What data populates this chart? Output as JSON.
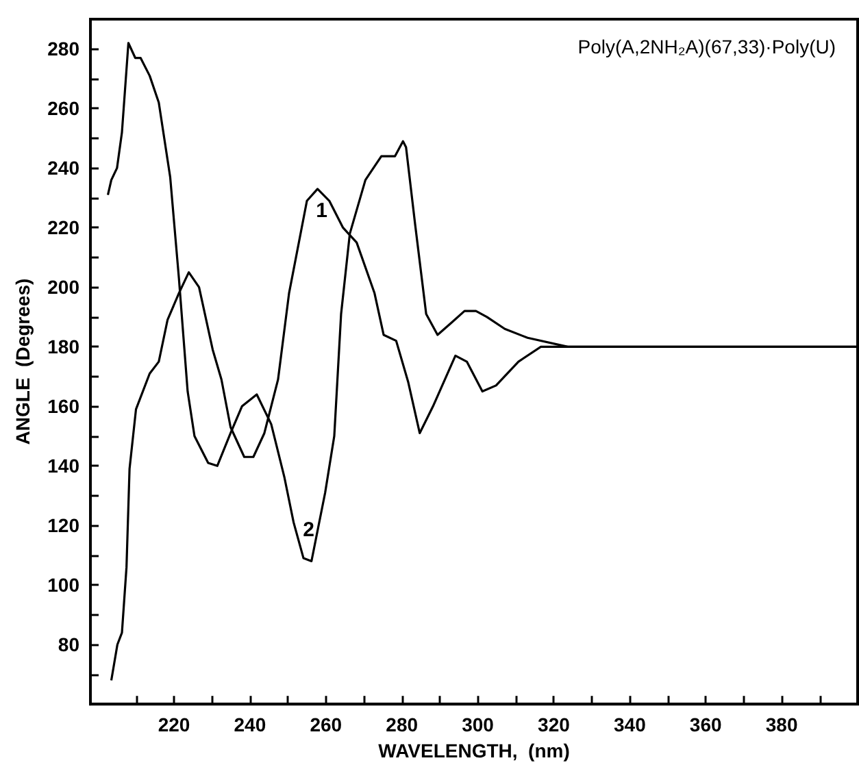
{
  "chart_data": {
    "type": "line",
    "title": "Poly(A,2NH₂A)(67,33)·Poly(U)",
    "xlabel": "WAVELENGTH,  (nm)",
    "ylabel": "ANGLE  (Degrees)",
    "xlim": [
      198,
      400
    ],
    "ylim": [
      60,
      290
    ],
    "xticks": [
      {
        "value": 210,
        "label": null
      },
      220,
      {
        "value": 230,
        "label": null
      },
      240,
      {
        "value": 250,
        "label": null
      },
      260,
      {
        "value": 270,
        "label": null
      },
      280,
      {
        "value": 290,
        "label": null
      },
      300,
      {
        "value": 310,
        "label": null
      },
      320,
      {
        "value": 330,
        "label": null
      },
      340,
      {
        "value": 350,
        "label": null
      },
      360,
      {
        "value": 370,
        "label": null
      },
      380,
      {
        "value": 390,
        "label": null
      }
    ],
    "yticks": [
      {
        "value": 70,
        "label": null
      },
      80,
      {
        "value": 90,
        "label": null
      },
      100,
      {
        "value": 110,
        "label": null
      },
      120,
      {
        "value": 130,
        "label": null
      },
      140,
      {
        "value": 150,
        "label": null
      },
      160,
      {
        "value": 170,
        "label": null
      },
      180,
      {
        "value": 190,
        "label": null
      },
      200,
      {
        "value": 210,
        "label": null
      },
      220,
      {
        "value": 230,
        "label": null
      },
      240,
      {
        "value": 250,
        "label": null
      },
      260,
      {
        "value": 270,
        "label": null
      },
      280
    ],
    "grid": false,
    "marker": "none",
    "line_style": "solid",
    "series": [
      {
        "color": "#000000",
        "x": [
          202.6,
          203.5,
          205,
          206.3,
          208,
          209.8,
          211.2,
          213.6,
          216,
          219,
          221.3,
          223.6,
          225.4,
          229,
          231.4,
          234.9,
          237.9,
          241.8,
          245.6,
          249.1,
          251.5,
          254.1,
          256.2,
          259.8,
          262.2,
          264,
          266.3,
          270.4,
          274.6,
          278.2,
          280.3,
          281.1,
          283.5,
          286.4,
          289.4,
          293,
          296.5,
          299.5,
          302.4,
          307.1,
          313.1,
          323.7,
          340,
          360,
          380,
          400
        ],
        "values": [
          231,
          236,
          240,
          252,
          282,
          277,
          277,
          271,
          262,
          237,
          203,
          165,
          150,
          141,
          140,
          151,
          160,
          164,
          154,
          136,
          121,
          109,
          108,
          131,
          150,
          191,
          218,
          236,
          244,
          244,
          249,
          247,
          221,
          191,
          184,
          188,
          192,
          192,
          190,
          186,
          183,
          180,
          180,
          180,
          180,
          180
        ]
      },
      {
        "color": "#000000",
        "x": [
          203.5,
          205.1,
          206.3,
          207.5,
          208.3,
          210,
          213.6,
          216,
          218.3,
          221.3,
          223.9,
          226.6,
          230.2,
          232.5,
          234.9,
          238.5,
          240.9,
          243.8,
          247.4,
          250.3,
          255,
          257.8,
          260.9,
          264.5,
          268.1,
          272.8,
          275.2,
          278.5,
          281.7,
          284.7,
          288.2,
          294.1,
          297.1,
          301.2,
          304.8,
          310.7,
          316.6,
          330,
          350,
          370,
          400
        ],
        "values": [
          68,
          80,
          84,
          106,
          139,
          159,
          171,
          175,
          189,
          198,
          205,
          200,
          179,
          169,
          153,
          143,
          143,
          151,
          169,
          198,
          229,
          233,
          229,
          220,
          215,
          198,
          184,
          182,
          168,
          151,
          160,
          177,
          175,
          165,
          167,
          175,
          180,
          180,
          180,
          180,
          180
        ]
      }
    ],
    "annotations": [
      {
        "text": "1",
        "x": 257.8,
        "y": 233
      },
      {
        "text": "2",
        "x": 256.2,
        "y": 108
      }
    ]
  }
}
